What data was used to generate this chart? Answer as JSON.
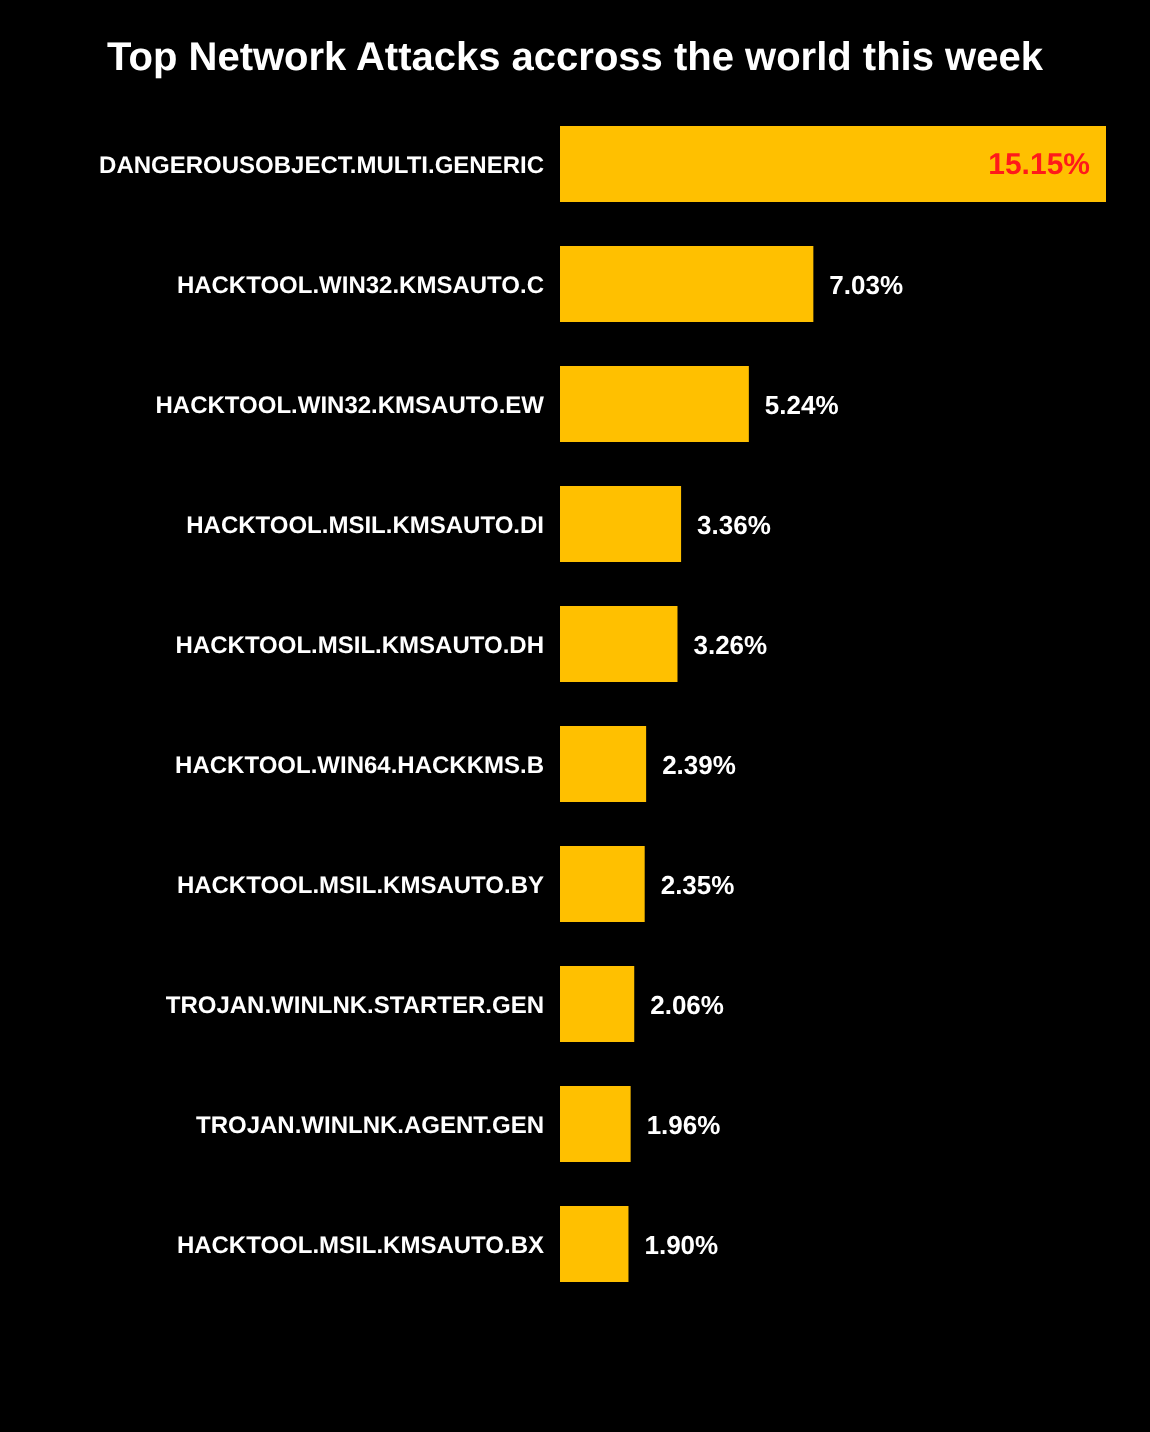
{
  "chart_data": {
    "type": "bar",
    "orientation": "horizontal",
    "title": "Top Network Attacks accross the world this week",
    "categories": [
      "DANGEROUSOBJECT.MULTI.GENERIC",
      "HACKTOOL.WIN32.KMSAUTO.C",
      "HACKTOOL.WIN32.KMSAUTO.EW",
      "HACKTOOL.MSIL.KMSAUTO.DI",
      "HACKTOOL.MSIL.KMSAUTO.DH",
      "HACKTOOL.WIN64.HACKKMS.B",
      "HACKTOOL.MSIL.KMSAUTO.BY",
      "TROJAN.WINLNK.STARTER.GEN",
      "TROJAN.WINLNK.AGENT.GEN",
      "HACKTOOL.MSIL.KMSAUTO.BX"
    ],
    "values": [
      15.15,
      7.03,
      5.24,
      3.36,
      3.26,
      2.39,
      2.35,
      2.06,
      1.96,
      1.9
    ],
    "value_labels": [
      "15.15%",
      "7.03%",
      "5.24%",
      "3.36%",
      "3.26%",
      "2.39%",
      "2.35%",
      "2.06%",
      "1.96%",
      "1.90%"
    ],
    "color": "#ffc000"
  }
}
